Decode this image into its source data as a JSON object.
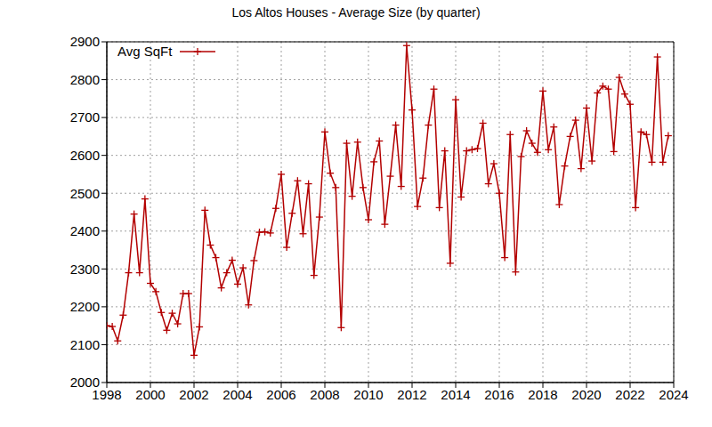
{
  "chart_data": {
    "type": "line",
    "title": "Los Altos Houses - Average Size (by quarter)",
    "x": [
      1998.0,
      1998.25,
      1998.5,
      1998.75,
      1999.0,
      1999.25,
      1999.5,
      1999.75,
      2000.0,
      2000.25,
      2000.5,
      2000.75,
      2001.0,
      2001.25,
      2001.5,
      2001.75,
      2002.0,
      2002.25,
      2002.5,
      2002.75,
      2003.0,
      2003.25,
      2003.5,
      2003.75,
      2004.0,
      2004.25,
      2004.5,
      2004.75,
      2005.0,
      2005.25,
      2005.5,
      2005.75,
      2006.0,
      2006.25,
      2006.5,
      2006.75,
      2007.0,
      2007.25,
      2007.5,
      2007.75,
      2008.0,
      2008.25,
      2008.5,
      2008.75,
      2009.0,
      2009.25,
      2009.5,
      2009.75,
      2010.0,
      2010.25,
      2010.5,
      2010.75,
      2011.0,
      2011.25,
      2011.5,
      2011.75,
      2012.0,
      2012.25,
      2012.5,
      2012.75,
      2013.0,
      2013.25,
      2013.5,
      2013.75,
      2014.0,
      2014.25,
      2014.5,
      2014.75,
      2015.0,
      2015.25,
      2015.5,
      2015.75,
      2016.0,
      2016.25,
      2016.5,
      2016.75,
      2017.0,
      2017.25,
      2017.5,
      2017.75,
      2018.0,
      2018.25,
      2018.5,
      2018.75,
      2019.0,
      2019.25,
      2019.5,
      2019.75,
      2020.0,
      2020.25,
      2020.5,
      2020.75,
      2021.0,
      2021.25,
      2021.5,
      2021.75,
      2022.0,
      2022.25,
      2022.5,
      2022.75,
      2023.0,
      2023.25,
      2023.5,
      2023.75
    ],
    "series": [
      {
        "name": "Avg SqFt",
        "color": "#b30000",
        "marker": "plus",
        "values": [
          2150,
          2148,
          2110,
          2178,
          2290,
          2445,
          2290,
          2485,
          2262,
          2240,
          2185,
          2138,
          2183,
          2155,
          2235,
          2235,
          2072,
          2147,
          2455,
          2363,
          2330,
          2250,
          2290,
          2323,
          2260,
          2303,
          2205,
          2322,
          2397,
          2398,
          2395,
          2460,
          2550,
          2357,
          2447,
          2533,
          2393,
          2525,
          2283,
          2437,
          2662,
          2553,
          2515,
          2145,
          2632,
          2492,
          2635,
          2515,
          2430,
          2583,
          2638,
          2418,
          2545,
          2680,
          2518,
          2890,
          2720,
          2465,
          2540,
          2680,
          2775,
          2462,
          2612,
          2315,
          2747,
          2490,
          2612,
          2615,
          2618,
          2685,
          2525,
          2578,
          2500,
          2330,
          2655,
          2292,
          2597,
          2665,
          2632,
          2608,
          2770,
          2615,
          2675,
          2470,
          2572,
          2650,
          2693,
          2565,
          2725,
          2585,
          2765,
          2783,
          2775,
          2610,
          2806,
          2762,
          2735,
          2462,
          2662,
          2655,
          2582,
          2860,
          2582,
          2652
        ]
      }
    ],
    "xlim": [
      1998,
      2024
    ],
    "xticks": [
      1998,
      2000,
      2002,
      2004,
      2006,
      2008,
      2010,
      2012,
      2014,
      2016,
      2018,
      2020,
      2022,
      2024
    ],
    "ylim": [
      2000,
      2900
    ],
    "yticks": [
      2000,
      2100,
      2200,
      2300,
      2400,
      2500,
      2600,
      2700,
      2800,
      2900
    ],
    "grid": true,
    "legend": "upper left"
  }
}
